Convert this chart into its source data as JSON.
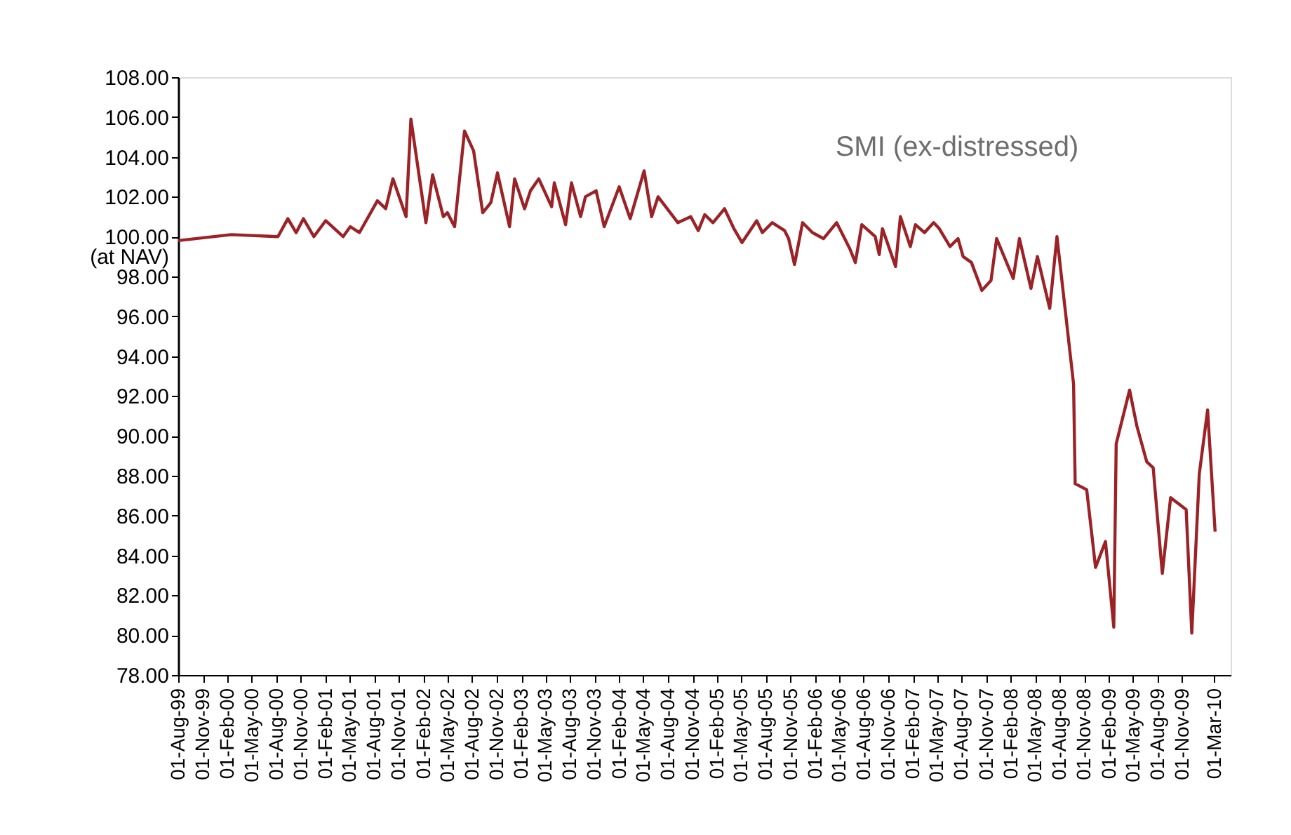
{
  "chart_data": {
    "type": "line",
    "x": [
      "1999-08-01",
      "2000-02-15",
      "2000-08-07",
      "2000-09-13",
      "2000-10-14",
      "2000-11-10",
      "2000-12-19",
      "2001-02-01",
      "2001-04-07",
      "2001-05-04",
      "2001-06-07",
      "2001-08-13",
      "2001-09-13",
      "2001-10-10",
      "2001-11-28",
      "2001-12-16",
      "2002-02-10",
      "2002-03-07",
      "2002-04-16",
      "2002-05-01",
      "2002-05-28",
      "2002-07-04",
      "2002-08-07",
      "2002-09-10",
      "2002-10-10",
      "2002-11-04",
      "2002-12-19",
      "2003-01-07",
      "2003-02-13",
      "2003-03-07",
      "2003-04-07",
      "2003-05-25",
      "2003-06-04",
      "2003-07-16",
      "2003-08-07",
      "2003-09-10",
      "2003-09-28",
      "2003-11-07",
      "2003-12-07",
      "2004-02-01",
      "2004-03-13",
      "2004-05-04",
      "2004-06-01",
      "2004-06-25",
      "2004-09-07",
      "2004-10-25",
      "2004-11-22",
      "2004-12-16",
      "2005-01-16",
      "2005-02-28",
      "2005-04-04",
      "2005-05-04",
      "2005-06-28",
      "2005-07-19",
      "2005-08-25",
      "2005-10-10",
      "2005-10-25",
      "2005-11-16",
      "2005-12-16",
      "2006-01-22",
      "2006-03-04",
      "2006-04-22",
      "2006-06-10",
      "2006-07-01",
      "2006-07-25",
      "2006-09-13",
      "2006-09-28",
      "2006-10-10",
      "2006-11-28",
      "2006-12-16",
      "2007-01-22",
      "2007-02-10",
      "2007-03-16",
      "2007-04-19",
      "2007-05-10",
      "2007-06-19",
      "2007-07-19",
      "2007-08-07",
      "2007-09-07",
      "2007-10-16",
      "2007-11-19",
      "2007-12-10",
      "2008-02-10",
      "2008-03-04",
      "2008-04-16",
      "2008-05-10",
      "2008-06-25",
      "2008-07-22",
      "2008-09-22",
      "2008-09-28",
      "2008-11-10",
      "2008-12-13",
      "2009-01-19",
      "2009-02-19",
      "2009-02-28",
      "2009-04-19",
      "2009-05-16",
      "2009-06-22",
      "2009-07-16",
      "2009-08-19",
      "2009-09-19",
      "2009-11-16",
      "2009-12-07",
      "2010-01-04",
      "2010-02-04",
      "2010-03-04"
    ],
    "series": [
      {
        "name": "SMI (ex-distressed)",
        "color": "#9b2226",
        "values": [
          99.8,
          100.1,
          100.0,
          100.9,
          100.2,
          100.9,
          100.0,
          100.8,
          100.0,
          100.5,
          100.2,
          101.8,
          101.4,
          102.9,
          101.0,
          105.9,
          100.7,
          103.1,
          101.0,
          101.2,
          100.5,
          105.3,
          104.3,
          101.2,
          101.7,
          103.2,
          100.5,
          102.9,
          101.4,
          102.3,
          102.9,
          101.5,
          102.7,
          100.6,
          102.7,
          101.0,
          102.0,
          102.3,
          100.5,
          102.5,
          100.9,
          103.3,
          101.0,
          102.0,
          100.7,
          101.0,
          100.3,
          101.1,
          100.7,
          101.4,
          100.4,
          99.7,
          100.8,
          100.2,
          100.7,
          100.3,
          99.9,
          98.6,
          100.7,
          100.2,
          99.9,
          100.7,
          99.4,
          98.7,
          100.6,
          100.0,
          99.1,
          100.4,
          98.5,
          101.0,
          99.5,
          100.6,
          100.2,
          100.7,
          100.4,
          99.5,
          99.9,
          99.0,
          98.7,
          97.3,
          97.8,
          99.9,
          97.9,
          99.9,
          97.4,
          99.0,
          96.4,
          100.0,
          92.6,
          87.6,
          87.3,
          83.4,
          84.7,
          80.4,
          89.6,
          92.3,
          90.5,
          88.7,
          88.4,
          83.1,
          86.9,
          86.3,
          80.1,
          88.1,
          91.3,
          85.2
        ]
      }
    ],
    "xlim": [
      "1999-08-01",
      "2010-05-01"
    ],
    "xticks": [
      {
        "value": "1999-08-01",
        "label": "01-Aug-99"
      },
      {
        "value": "1999-11-01",
        "label": "01-Nov-99"
      },
      {
        "value": "2000-02-01",
        "label": "01-Feb-00"
      },
      {
        "value": "2000-05-01",
        "label": "01-May-00"
      },
      {
        "value": "2000-08-01",
        "label": "01-Aug-00"
      },
      {
        "value": "2000-11-01",
        "label": "01-Nov-00"
      },
      {
        "value": "2001-02-01",
        "label": "01-Feb-01"
      },
      {
        "value": "2001-05-01",
        "label": "01-May-01"
      },
      {
        "value": "2001-08-01",
        "label": "01-Aug-01"
      },
      {
        "value": "2001-11-01",
        "label": "01-Nov-01"
      },
      {
        "value": "2002-02-01",
        "label": "01-Feb-02"
      },
      {
        "value": "2002-05-01",
        "label": "01-May-02"
      },
      {
        "value": "2002-08-01",
        "label": "01-Aug-02"
      },
      {
        "value": "2002-11-01",
        "label": "01-Nov-02"
      },
      {
        "value": "2003-02-01",
        "label": "01-Feb-03"
      },
      {
        "value": "2003-05-01",
        "label": "01-May-03"
      },
      {
        "value": "2003-08-01",
        "label": "01-Aug-03"
      },
      {
        "value": "2003-11-01",
        "label": "01-Nov-03"
      },
      {
        "value": "2004-02-01",
        "label": "01-Feb-04"
      },
      {
        "value": "2004-05-01",
        "label": "01-May-04"
      },
      {
        "value": "2004-08-01",
        "label": "01-Aug-04"
      },
      {
        "value": "2004-11-01",
        "label": "01-Nov-04"
      },
      {
        "value": "2005-02-01",
        "label": "01-Feb-05"
      },
      {
        "value": "2005-05-01",
        "label": "01-May-05"
      },
      {
        "value": "2005-08-01",
        "label": "01-Aug-05"
      },
      {
        "value": "2005-11-01",
        "label": "01-Nov-05"
      },
      {
        "value": "2006-02-01",
        "label": "01-Feb-06"
      },
      {
        "value": "2006-05-01",
        "label": "01-May-06"
      },
      {
        "value": "2006-08-01",
        "label": "01-Aug-06"
      },
      {
        "value": "2006-11-01",
        "label": "01-Nov-06"
      },
      {
        "value": "2007-02-01",
        "label": "01-Feb-07"
      },
      {
        "value": "2007-05-01",
        "label": "01-May-07"
      },
      {
        "value": "2007-08-01",
        "label": "01-Aug-07"
      },
      {
        "value": "2007-11-01",
        "label": "01-Nov-07"
      },
      {
        "value": "2008-02-01",
        "label": "01-Feb-08"
      },
      {
        "value": "2008-05-01",
        "label": "01-May-08"
      },
      {
        "value": "2008-08-01",
        "label": "01-Aug-08"
      },
      {
        "value": "2008-11-01",
        "label": "01-Nov-08"
      },
      {
        "value": "2009-02-01",
        "label": "01-Feb-09"
      },
      {
        "value": "2009-05-01",
        "label": "01-May-09"
      },
      {
        "value": "2009-08-01",
        "label": "01-Aug-09"
      },
      {
        "value": "2009-11-01",
        "label": "01-Nov-09"
      },
      {
        "value": "2010-03-01",
        "label": "01-Mar-10"
      }
    ],
    "ylim": [
      78,
      108
    ],
    "yticks": [
      {
        "value": 78,
        "label": "78.00"
      },
      {
        "value": 80,
        "label": "80.00"
      },
      {
        "value": 82,
        "label": "82.00"
      },
      {
        "value": 84,
        "label": "84.00"
      },
      {
        "value": 86,
        "label": "86.00"
      },
      {
        "value": 88,
        "label": "88.00"
      },
      {
        "value": 90,
        "label": "90.00"
      },
      {
        "value": 92,
        "label": "92.00"
      },
      {
        "value": 94,
        "label": "94.00"
      },
      {
        "value": 96,
        "label": "96.00"
      },
      {
        "value": 98,
        "label": "98.00"
      },
      {
        "value": 100,
        "label": "100.00\n(at NAV)"
      },
      {
        "value": 102,
        "label": "102.00"
      },
      {
        "value": 104,
        "label": "104.00"
      },
      {
        "value": 106,
        "label": "106.00"
      },
      {
        "value": 108,
        "label": "108.00"
      }
    ],
    "grid": false
  }
}
